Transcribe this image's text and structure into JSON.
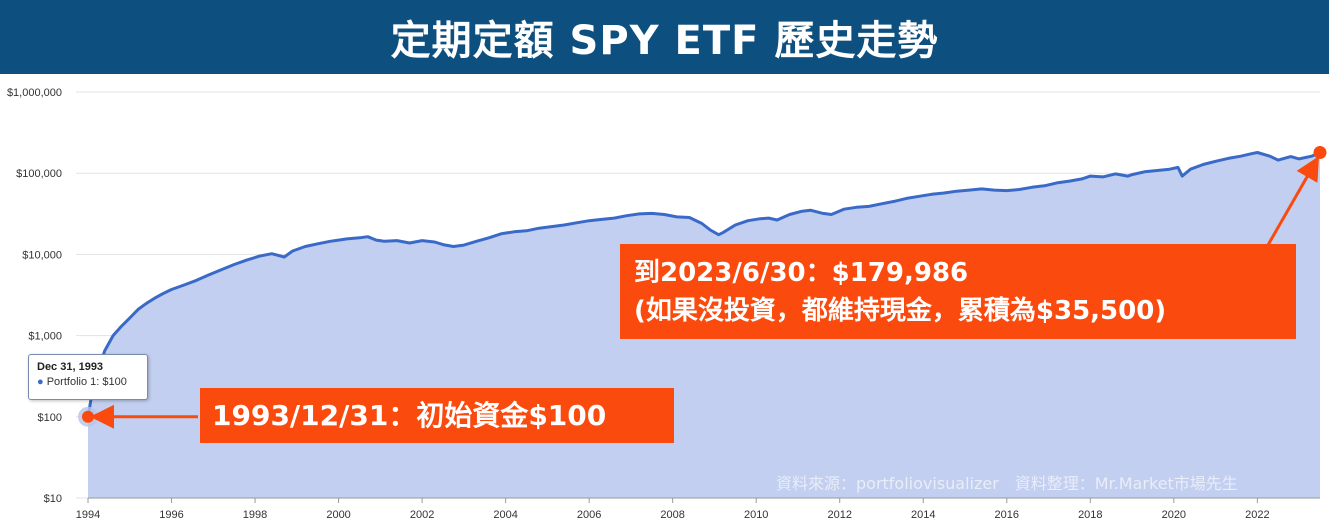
{
  "header": {
    "title": "定期定額 SPY ETF 歷史走勢"
  },
  "tooltip": {
    "date": "Dec 31, 1993",
    "series_label": "Portfolio 1: $100"
  },
  "callouts": {
    "end_line1": "到2023/6/30：$179,986",
    "end_line2": "(如果沒投資，都維持現金，累積為$35,500)",
    "start_text": "1993/12/31：初始資金$100"
  },
  "source_note": "資料來源：portfoliovisualizer　資料整理：Mr.Market市場先生",
  "colors": {
    "title_bg": "#0d4f7e",
    "line": "#3a6ac8",
    "area": "#c3cff0",
    "callout": "#fa4a0e",
    "grid": "#e3e3e3"
  },
  "chart_data": {
    "type": "area",
    "series": [
      {
        "name": "Portfolio 1",
        "x": [
          1993.99,
          1994.1,
          1994.25,
          1994.4,
          1994.6,
          1994.8,
          1995.0,
          1995.2,
          1995.4,
          1995.6,
          1995.8,
          1996.0,
          1996.3,
          1996.6,
          1996.9,
          1997.2,
          1997.5,
          1997.8,
          1998.1,
          1998.4,
          1998.7,
          1998.9,
          1999.2,
          1999.5,
          1999.8,
          2000.0,
          2000.2,
          2000.5,
          2000.7,
          2000.9,
          2001.1,
          2001.4,
          2001.7,
          2002.0,
          2002.3,
          2002.5,
          2002.75,
          2003.0,
          2003.3,
          2003.6,
          2003.9,
          2004.2,
          2004.5,
          2004.8,
          2005.1,
          2005.4,
          2005.7,
          2006.0,
          2006.3,
          2006.6,
          2006.9,
          2007.2,
          2007.5,
          2007.8,
          2008.1,
          2008.4,
          2008.7,
          2008.9,
          2009.1,
          2009.2,
          2009.5,
          2009.8,
          2010.1,
          2010.3,
          2010.5,
          2010.8,
          2011.1,
          2011.3,
          2011.6,
          2011.8,
          2012.1,
          2012.4,
          2012.7,
          2013.0,
          2013.3,
          2013.6,
          2013.9,
          2014.2,
          2014.5,
          2014.8,
          2015.1,
          2015.4,
          2015.7,
          2016.0,
          2016.3,
          2016.6,
          2016.9,
          2017.2,
          2017.5,
          2017.8,
          2018.0,
          2018.3,
          2018.6,
          2018.9,
          2019.0,
          2019.3,
          2019.6,
          2019.9,
          2020.1,
          2020.2,
          2020.4,
          2020.7,
          2021.0,
          2021.3,
          2021.6,
          2021.9,
          2022.0,
          2022.3,
          2022.5,
          2022.8,
          2023.0,
          2023.3,
          2023.5
        ],
        "values": [
          100,
          200,
          380,
          650,
          1000,
          1300,
          1650,
          2100,
          2500,
          2900,
          3300,
          3700,
          4200,
          4800,
          5600,
          6500,
          7500,
          8500,
          9500,
          10200,
          9300,
          11000,
          12500,
          13500,
          14500,
          15000,
          15500,
          16000,
          16500,
          15000,
          14500,
          14800,
          13800,
          14800,
          14200,
          13200,
          12500,
          13000,
          14500,
          16000,
          18000,
          19000,
          19500,
          21000,
          22000,
          23000,
          24500,
          26000,
          27000,
          28000,
          30000,
          31500,
          32000,
          31000,
          29000,
          28500,
          24000,
          20000,
          17500,
          18500,
          23000,
          26000,
          27500,
          28000,
          26500,
          31000,
          34000,
          35000,
          32000,
          31000,
          36000,
          38000,
          39000,
          42000,
          45000,
          49000,
          52000,
          55000,
          57000,
          60000,
          62000,
          64000,
          62000,
          61000,
          63000,
          67000,
          70000,
          76000,
          80000,
          85000,
          92000,
          90000,
          98000,
          92000,
          96000,
          104000,
          108000,
          112000,
          118000,
          92000,
          112000,
          128000,
          140000,
          152000,
          162000,
          176000,
          180000,
          162000,
          145000,
          160000,
          150000,
          162000,
          179986
        ]
      }
    ],
    "yscale": "log",
    "ylim": [
      10,
      1000000
    ],
    "xlim": [
      1994,
      2023.5
    ],
    "y_ticks": [
      "$10",
      "$100",
      "$1,000",
      "$10,000",
      "$100,000",
      "$1,000,000"
    ],
    "y_tick_values": [
      10,
      100,
      1000,
      10000,
      100000,
      1000000
    ],
    "x_ticks": [
      "1994",
      "1996",
      "1998",
      "2000",
      "2002",
      "2004",
      "2006",
      "2008",
      "2010",
      "2012",
      "2014",
      "2016",
      "2018",
      "2020",
      "2022"
    ],
    "x_tick_values": [
      1994,
      1996,
      1998,
      2000,
      2002,
      2004,
      2006,
      2008,
      2010,
      2012,
      2014,
      2016,
      2018,
      2020,
      2022
    ],
    "grid": true,
    "legend": "none",
    "highlighted_points": [
      {
        "x": 1993.99,
        "y": 100
      },
      {
        "x": 2023.5,
        "y": 179986
      }
    ]
  }
}
